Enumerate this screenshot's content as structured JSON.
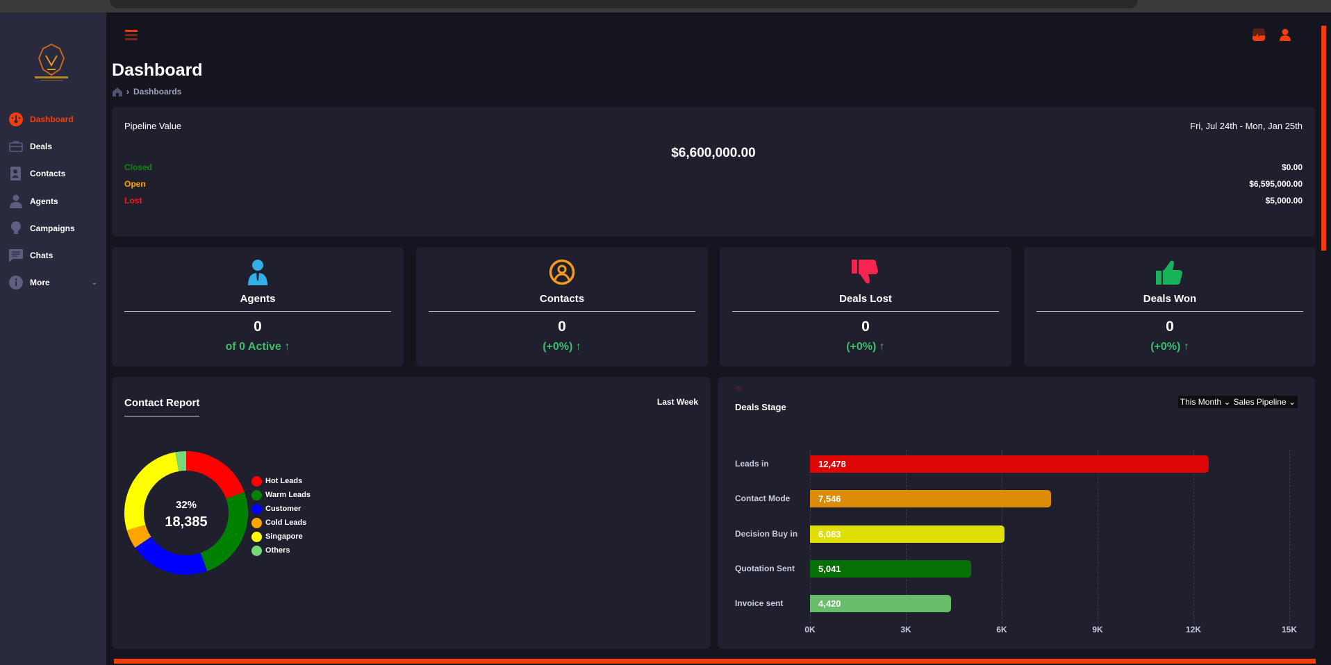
{
  "sidebar": {
    "items": [
      {
        "label": "Dashboard",
        "icon": "dashboard-gauge-icon",
        "active": true
      },
      {
        "label": "Deals",
        "icon": "briefcase-icon"
      },
      {
        "label": "Contacts",
        "icon": "contact-book-icon"
      },
      {
        "label": "Agents",
        "icon": "agent-icon"
      },
      {
        "label": "Campaigns",
        "icon": "lightbulb-icon"
      },
      {
        "label": "Chats",
        "icon": "chat-icon"
      },
      {
        "label": "More",
        "icon": "info-icon"
      }
    ]
  },
  "header": {
    "title": "Dashboard",
    "breadcrumb": "Dashboards"
  },
  "pipeline": {
    "title": "Pipeline Value",
    "date_range": "Fri, Jul 24th - Mon, Jan 25th",
    "total": "$6,600,000.00",
    "rows": [
      {
        "label": "Closed",
        "value": "$0.00",
        "color": "#0a8a0a"
      },
      {
        "label": "Open",
        "value": "$6,595,000.00",
        "color": "#ffa500"
      },
      {
        "label": "Lost",
        "value": "$5,000.00",
        "color": "#ff1a1a"
      }
    ]
  },
  "stats": [
    {
      "label": "Agents",
      "value": "0",
      "sub": "of 0 Active ↑",
      "icon": "agent-icon",
      "color": "#33aee6"
    },
    {
      "label": "Contacts",
      "value": "0",
      "sub": "(+0%) ↑",
      "icon": "user-circle-icon",
      "color": "#f59a1b"
    },
    {
      "label": "Deals Lost",
      "value": "0",
      "sub": "(+0%) ↑",
      "icon": "thumbs-down-icon",
      "color": "#f5254f"
    },
    {
      "label": "Deals Won",
      "value": "0",
      "sub": "(+0%) ↑",
      "icon": "thumbs-up-icon",
      "color": "#17b35a"
    }
  ],
  "contact_report": {
    "title": "Contact Report",
    "period": "Last Week",
    "center_pct": "32%",
    "center_total": "18,385"
  },
  "deals_stage": {
    "title": "Deals Stage",
    "period_select": "This Month",
    "pipeline_select": "Sales Pipeline"
  },
  "chart_data": [
    {
      "type": "pie",
      "title": "Contact Report",
      "total": "18,385",
      "categories": [
        "Hot Leads",
        "Warm Leads",
        "Customer",
        "Cold Leads",
        "Singapore",
        "Others"
      ],
      "values": [
        19.5,
        25,
        21,
        5,
        26.7,
        2.8
      ],
      "colors": [
        "#ff0000",
        "#008000",
        "#0000ff",
        "#ffa500",
        "#ffff00",
        "#77d877"
      ]
    },
    {
      "type": "bar",
      "orientation": "horizontal",
      "title": "Deals Stage",
      "categories": [
        "Leads in",
        "Contact Mode",
        "Decision Buy in",
        "Quotation Sent",
        "Invoice sent"
      ],
      "values": [
        12478,
        7546,
        6083,
        5041,
        4420
      ],
      "value_labels": [
        "12,478",
        "7,546",
        "6,083",
        "5,041",
        "4,420"
      ],
      "colors": [
        "#dd0505",
        "#dd8c07",
        "#dfdf07",
        "#077007",
        "#67bd6a"
      ],
      "xlim": [
        0,
        15000
      ],
      "xticks": [
        "0K",
        "3K",
        "6K",
        "9K",
        "12K",
        "15K"
      ]
    }
  ]
}
